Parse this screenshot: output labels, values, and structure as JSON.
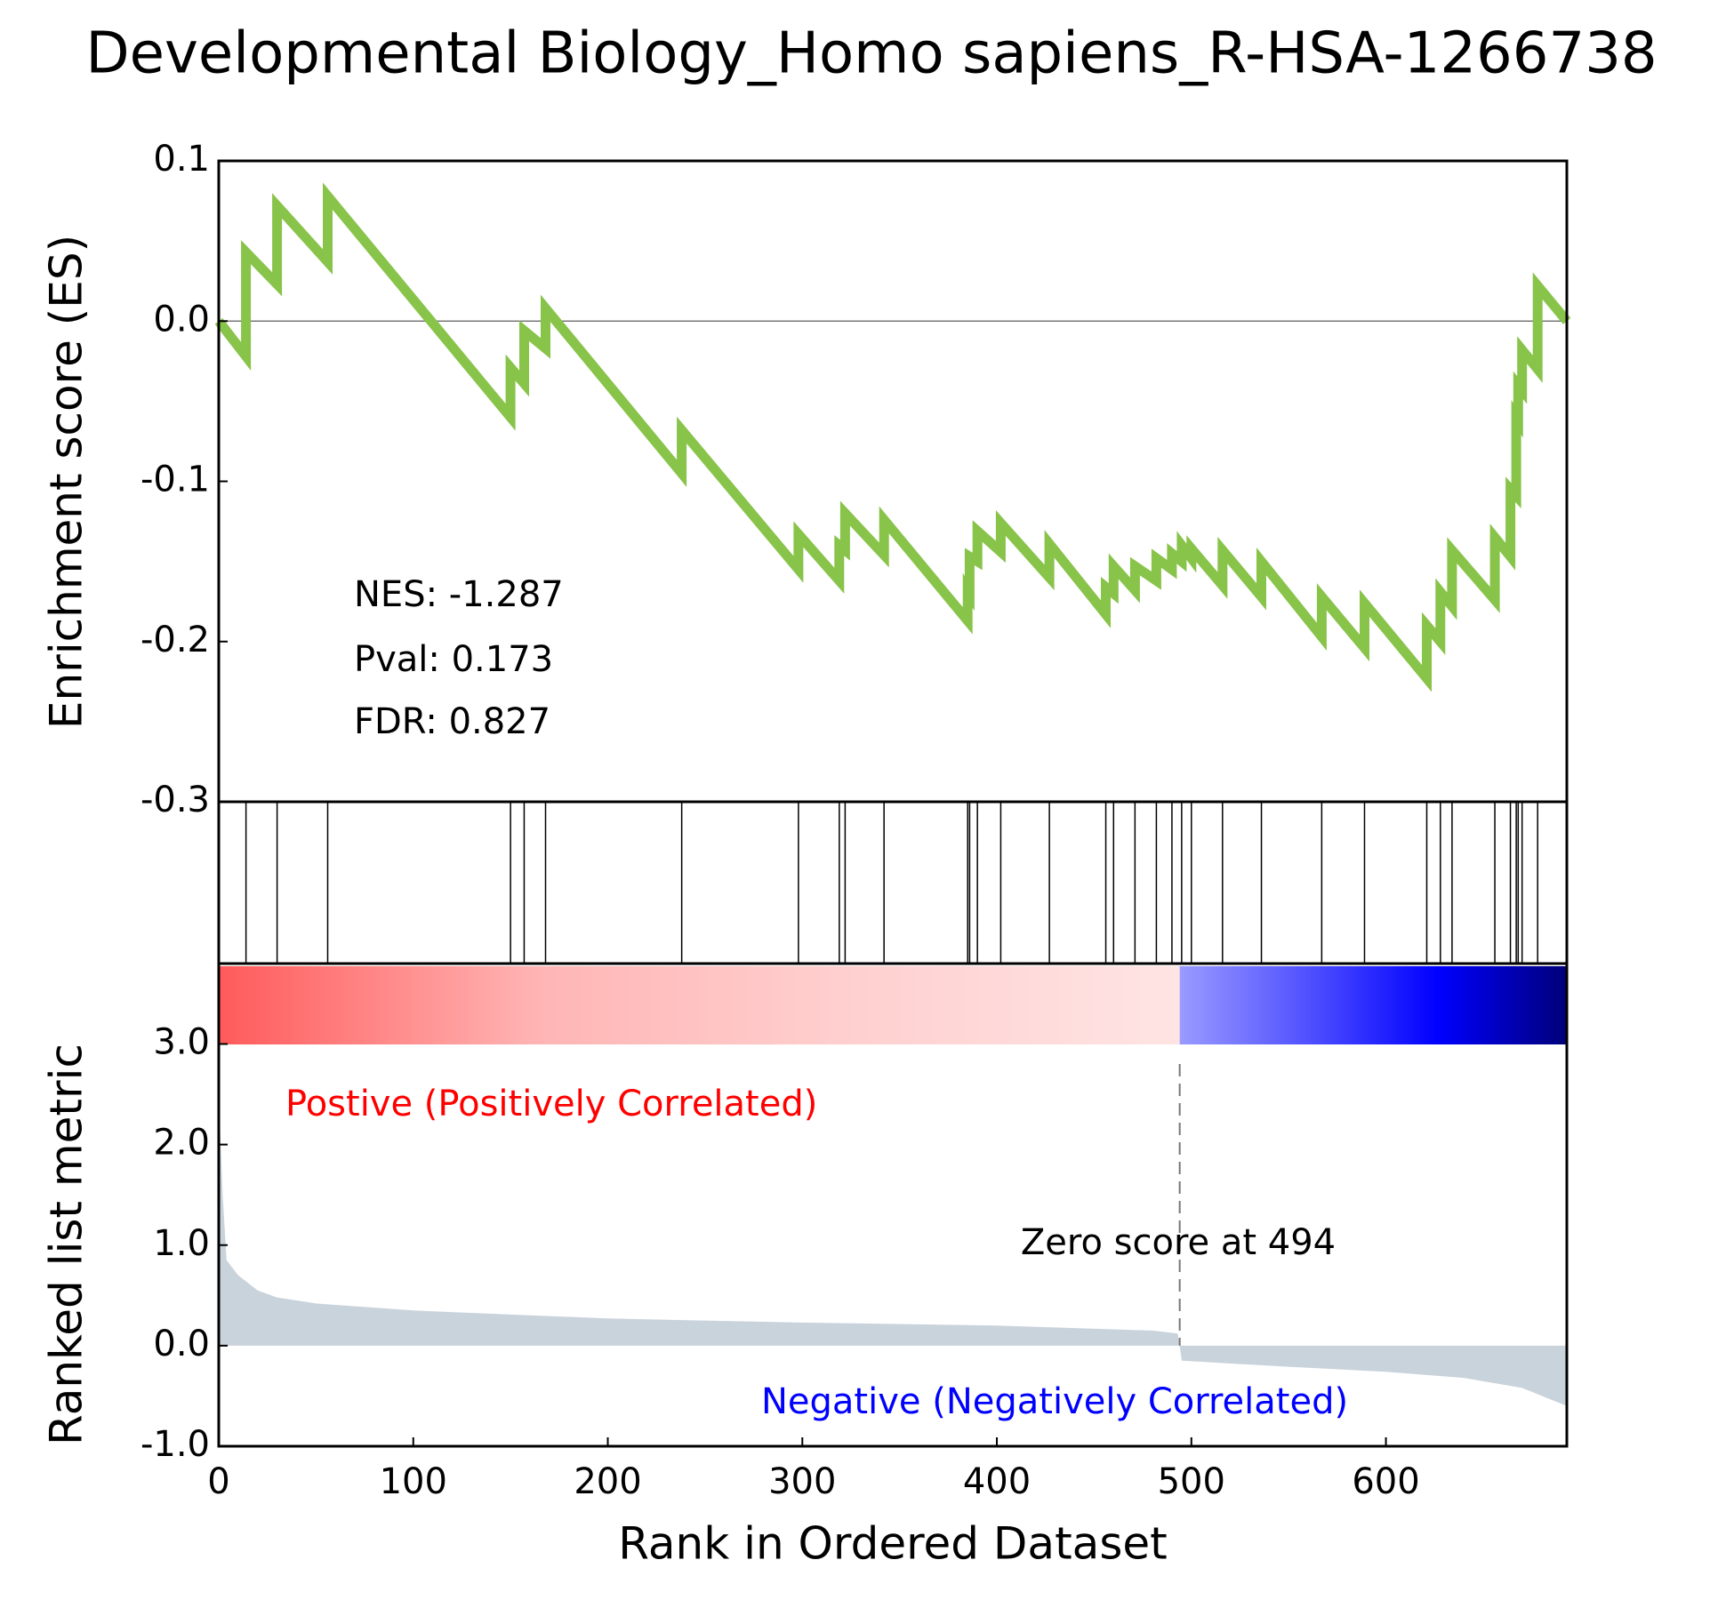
{
  "chart_data": [
    {
      "type": "line",
      "title": "Developmental Biology_Homo sapiens_R-HSA-1266738",
      "ylabel": "Enrichment score (ES)",
      "stats": [
        "NES: -1.287",
        "Pval: 0.173",
        "FDR: 0.827"
      ],
      "xlim": [
        0,
        693
      ],
      "ylim": [
        -0.3,
        0.1
      ],
      "yticks": [
        0.1,
        {
          "value": 0,
          "label": "0.0"
        },
        -0.1,
        -0.2,
        -0.3
      ],
      "hline": 0,
      "series": [
        {
          "color": "#88c34a",
          "x": [
            0,
            14,
            14,
            30,
            30,
            56,
            56,
            150,
            150,
            157,
            157,
            168,
            168,
            238,
            238,
            298,
            298,
            319,
            319,
            322,
            322,
            342,
            342,
            385,
            385,
            386,
            386,
            390,
            390,
            402,
            402,
            427,
            427,
            456,
            456,
            460,
            460,
            471,
            471,
            482,
            482,
            490,
            490,
            495,
            495,
            500,
            500,
            516,
            516,
            536,
            536,
            567,
            567,
            589,
            589,
            621,
            621,
            628,
            628,
            634,
            634,
            656,
            656,
            664,
            664,
            667,
            667,
            668,
            668,
            670,
            670,
            678,
            678,
            693
          ],
          "values": [
            0,
            -0.022,
            0.043,
            0.023,
            0.072,
            0.037,
            0.078,
            -0.06,
            -0.029,
            -0.039,
            -0.006,
            -0.017,
            0.008,
            -0.095,
            -0.068,
            -0.155,
            -0.133,
            -0.162,
            -0.14,
            -0.143,
            -0.12,
            -0.146,
            -0.124,
            -0.187,
            -0.168,
            -0.17,
            -0.147,
            -0.15,
            -0.131,
            -0.144,
            -0.126,
            -0.16,
            -0.139,
            -0.183,
            -0.166,
            -0.17,
            -0.153,
            -0.168,
            -0.153,
            -0.162,
            -0.148,
            -0.155,
            -0.145,
            -0.15,
            -0.14,
            -0.148,
            -0.142,
            -0.165,
            -0.143,
            -0.172,
            -0.15,
            -0.197,
            -0.172,
            -0.204,
            -0.176,
            -0.223,
            -0.19,
            -0.2,
            -0.169,
            -0.178,
            -0.143,
            -0.174,
            -0.135,
            -0.147,
            -0.105,
            -0.109,
            -0.06,
            -0.062,
            -0.04,
            -0.043,
            -0.018,
            -0.03,
            0.022,
            0
          ]
        }
      ]
    },
    {
      "type": "rug",
      "xlim": [
        0,
        693
      ],
      "hits": [
        14,
        30,
        56,
        150,
        157,
        168,
        238,
        298,
        319,
        322,
        342,
        385,
        386,
        390,
        402,
        427,
        456,
        460,
        471,
        482,
        490,
        495,
        500,
        516,
        536,
        567,
        589,
        621,
        628,
        634,
        656,
        664,
        667,
        668,
        670,
        678
      ]
    },
    {
      "type": "area",
      "ylabel": "Ranked list metric",
      "xlabel": "Rank in Ordered Dataset",
      "xlim": [
        0,
        693
      ],
      "ylim": [
        -1.0,
        3.8
      ],
      "xticks": [
        0,
        100,
        200,
        300,
        400,
        500,
        600
      ],
      "yticks": [
        {
          "value": 3,
          "label": "3.0"
        },
        {
          "value": 2,
          "label": "2.0"
        },
        {
          "value": 1,
          "label": "1.0"
        },
        {
          "value": 0,
          "label": "0.0"
        },
        {
          "value": -1,
          "label": "-1.0"
        }
      ],
      "zero_rank": 494,
      "zero_label": "Zero score at 494",
      "positive_label": "Postive (Positively Correlated)",
      "negative_label": "Negative (Negatively Correlated)",
      "positive_color": "#ff0000",
      "negative_color": "#0000ff",
      "color": "#c9d3dc",
      "colorbar": {
        "positive": [
          "#ff5a5a",
          "#ffb5b5",
          "#ffd0d0",
          "#ffe4e4"
        ],
        "negative": [
          "#9a9aff",
          "#5050ff",
          "#0000ff",
          "#00007a"
        ]
      },
      "x": [
        0,
        2,
        4,
        10,
        20,
        30,
        50,
        100,
        200,
        300,
        400,
        480,
        493,
        494,
        495,
        550,
        600,
        640,
        670,
        693
      ],
      "values": [
        2.5,
        1.5,
        0.85,
        0.7,
        0.55,
        0.48,
        0.42,
        0.35,
        0.27,
        0.23,
        0.2,
        0.15,
        0.12,
        0,
        -0.15,
        -0.21,
        -0.26,
        -0.32,
        -0.42,
        -0.6
      ]
    }
  ]
}
